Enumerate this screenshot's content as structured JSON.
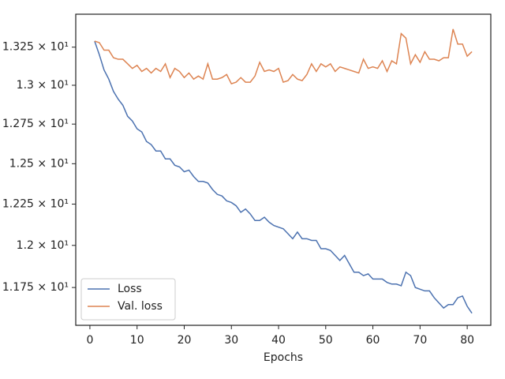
{
  "chart_data": {
    "type": "line",
    "x_label": "Epochs",
    "x": [
      1,
      2,
      3,
      4,
      5,
      6,
      7,
      8,
      9,
      10,
      11,
      12,
      13,
      14,
      15,
      16,
      17,
      18,
      19,
      20,
      21,
      22,
      23,
      24,
      25,
      26,
      27,
      28,
      29,
      30,
      31,
      32,
      33,
      34,
      35,
      36,
      37,
      38,
      39,
      40,
      41,
      42,
      43,
      44,
      45,
      46,
      47,
      48,
      49,
      50,
      51,
      52,
      53,
      54,
      55,
      56,
      57,
      58,
      59,
      60,
      61,
      62,
      63,
      64,
      65,
      66,
      67,
      68,
      69,
      70,
      71,
      72,
      73,
      74,
      75,
      76,
      77,
      78,
      79,
      80,
      81
    ],
    "series": [
      {
        "name": "Loss",
        "color": "#4c72b0",
        "values": [
          13.29,
          13.2,
          13.1,
          13.04,
          12.96,
          12.91,
          12.87,
          12.8,
          12.77,
          12.72,
          12.7,
          12.64,
          12.62,
          12.58,
          12.58,
          12.53,
          12.53,
          12.49,
          12.48,
          12.45,
          12.46,
          12.42,
          12.39,
          12.39,
          12.38,
          12.34,
          12.31,
          12.3,
          12.27,
          12.26,
          12.24,
          12.2,
          12.22,
          12.19,
          12.15,
          12.15,
          12.17,
          12.14,
          12.12,
          12.11,
          12.1,
          12.07,
          12.04,
          12.08,
          12.04,
          12.04,
          12.03,
          12.03,
          11.98,
          11.98,
          11.97,
          11.94,
          11.91,
          11.94,
          11.89,
          11.84,
          11.84,
          11.82,
          11.83,
          11.8,
          11.8,
          11.8,
          11.78,
          11.77,
          11.77,
          11.76,
          11.84,
          11.82,
          11.75,
          11.74,
          11.73,
          11.73,
          11.69,
          11.66,
          11.63,
          11.65,
          11.65,
          11.69,
          11.7,
          11.64,
          11.6
        ]
      },
      {
        "name": "Val. loss",
        "color": "#dd8452",
        "values": [
          13.29,
          13.28,
          13.23,
          13.23,
          13.18,
          13.17,
          13.17,
          13.14,
          13.11,
          13.13,
          13.09,
          13.11,
          13.08,
          13.11,
          13.09,
          13.14,
          13.05,
          13.11,
          13.09,
          13.05,
          13.08,
          13.04,
          13.06,
          13.04,
          13.14,
          13.04,
          13.04,
          13.05,
          13.07,
          13.01,
          13.02,
          13.05,
          13.02,
          13.02,
          13.06,
          13.15,
          13.09,
          13.1,
          13.09,
          13.11,
          13.02,
          13.03,
          13.07,
          13.04,
          13.03,
          13.07,
          13.14,
          13.09,
          13.14,
          13.12,
          13.14,
          13.09,
          13.12,
          13.11,
          13.1,
          13.09,
          13.08,
          13.17,
          13.11,
          13.12,
          13.11,
          13.16,
          13.09,
          13.16,
          13.14,
          13.34,
          13.31,
          13.14,
          13.2,
          13.15,
          13.22,
          13.17,
          13.17,
          13.16,
          13.18,
          13.18,
          13.37,
          13.27,
          13.27,
          13.19,
          13.22
        ]
      }
    ],
    "xlim": [
      -3,
      85
    ],
    "xticks": [
      0,
      10,
      20,
      30,
      40,
      50,
      60,
      70,
      80
    ],
    "ylim": [
      11.53,
      13.47
    ],
    "log_y": true,
    "yticks": [
      {
        "value": 11.75,
        "label": "1.175 × 10¹"
      },
      {
        "value": 12.0,
        "label": "1.2 × 10¹"
      },
      {
        "value": 12.25,
        "label": "1.225 × 10¹"
      },
      {
        "value": 12.5,
        "label": "1.25 × 10¹"
      },
      {
        "value": 12.75,
        "label": "1.275 × 10¹"
      },
      {
        "value": 13.0,
        "label": "1.3 × 10¹"
      },
      {
        "value": 13.25,
        "label": "1.325 × 10¹"
      }
    ],
    "legend": "lower left",
    "grid": false
  }
}
